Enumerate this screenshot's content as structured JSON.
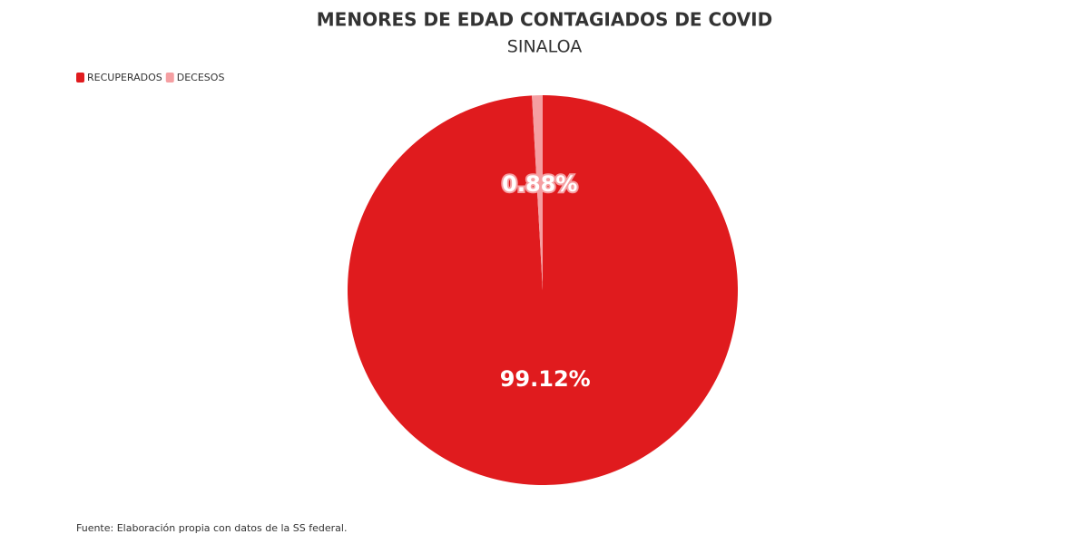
{
  "chart_data": {
    "type": "pie",
    "title": "MENORES DE EDAD CONTAGIADOS DE COVID",
    "subtitle": "SINALOA",
    "categories": [
      "RECUPERADOS",
      "DECESOS"
    ],
    "values": [
      99.12,
      0.88
    ],
    "value_labels": [
      "99.12%",
      "0.88%"
    ],
    "colors": [
      "#e01b1e",
      "#f59fa2"
    ],
    "legend": "top-left",
    "source": "Fuente: Elaboración propia con datos de la SS federal."
  }
}
